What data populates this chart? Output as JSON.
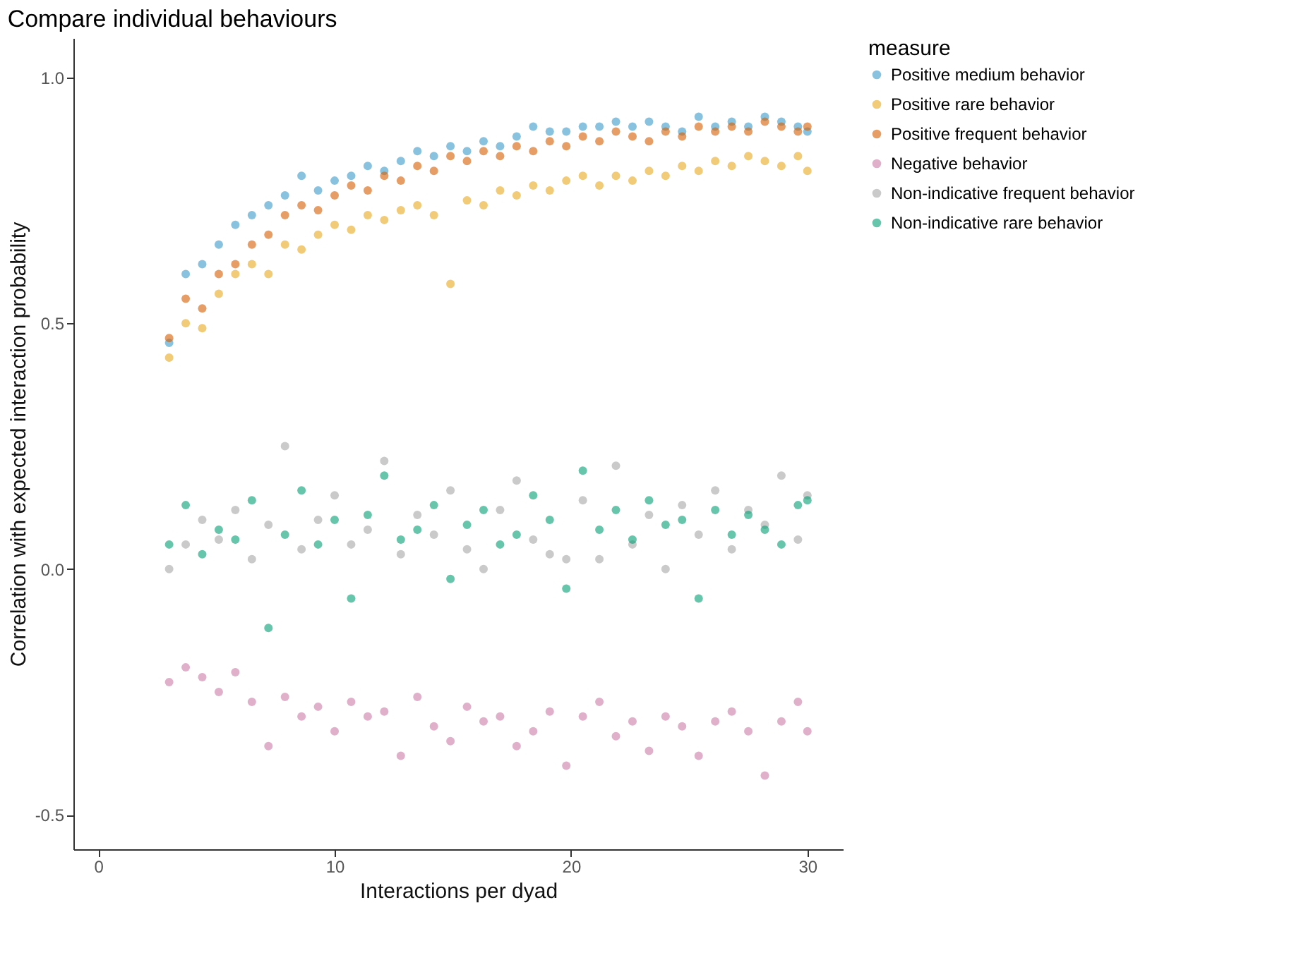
{
  "chart_data": {
    "type": "scatter",
    "title": "Compare individual behaviours",
    "xlabel": "Interactions per dyad",
    "ylabel": "Correlation with expected interaction probability",
    "legend_title": "measure",
    "legend": "right",
    "marker": "circle",
    "grid": false,
    "xlim": [
      -1.05,
      31.5
    ],
    "ylim": [
      -0.57,
      1.08
    ],
    "xticks": [
      0,
      10,
      20,
      30
    ],
    "yticks": [
      {
        "value": -0.5,
        "label": "-0.5"
      },
      {
        "value": 0,
        "label": "0.0"
      },
      {
        "value": 0.5,
        "label": "0.5"
      },
      {
        "value": 1,
        "label": "1.0"
      }
    ],
    "x": [
      3,
      3.7,
      4.4,
      5.1,
      5.8,
      6.5,
      7.2,
      7.9,
      8.6,
      9.3,
      10,
      10.7,
      11.4,
      12.1,
      12.8,
      13.5,
      14.2,
      14.9,
      15.6,
      16.3,
      17,
      17.7,
      18.4,
      19.1,
      19.8,
      20.5,
      21.2,
      21.9,
      22.6,
      23.3,
      24,
      24.7,
      25.4,
      26.1,
      26.8,
      27.5,
      28.2,
      28.9,
      29.6,
      30
    ],
    "series": [
      {
        "name": "Positive medium behavior",
        "color": "#3a9ac9",
        "values": [
          0.46,
          0.6,
          0.62,
          0.66,
          0.7,
          0.72,
          0.74,
          0.76,
          0.8,
          0.77,
          0.79,
          0.8,
          0.82,
          0.81,
          0.83,
          0.85,
          0.84,
          0.86,
          0.85,
          0.87,
          0.86,
          0.88,
          0.9,
          0.89,
          0.89,
          0.9,
          0.9,
          0.91,
          0.9,
          0.91,
          0.9,
          0.89,
          0.92,
          0.9,
          0.91,
          0.9,
          0.92,
          0.91,
          0.9,
          0.89
        ]
      },
      {
        "name": "Positive rare behavior",
        "color": "#e8a91c",
        "values": [
          0.43,
          0.5,
          0.49,
          0.56,
          0.6,
          0.62,
          0.6,
          0.66,
          0.65,
          0.68,
          0.7,
          0.69,
          0.72,
          0.71,
          0.73,
          0.74,
          0.72,
          0.58,
          0.75,
          0.74,
          0.77,
          0.76,
          0.78,
          0.77,
          0.79,
          0.8,
          0.78,
          0.8,
          0.79,
          0.81,
          0.8,
          0.82,
          0.81,
          0.83,
          0.82,
          0.84,
          0.83,
          0.82,
          0.84,
          0.81
        ]
      },
      {
        "name": "Positive frequent behavior",
        "color": "#d55e00",
        "values": [
          0.47,
          0.55,
          0.53,
          0.6,
          0.62,
          0.66,
          0.68,
          0.72,
          0.74,
          0.73,
          0.76,
          0.78,
          0.77,
          0.8,
          0.79,
          0.82,
          0.81,
          0.84,
          0.83,
          0.85,
          0.84,
          0.86,
          0.85,
          0.87,
          0.86,
          0.88,
          0.87,
          0.89,
          0.88,
          0.87,
          0.89,
          0.88,
          0.9,
          0.89,
          0.9,
          0.89,
          0.91,
          0.9,
          0.89,
          0.9
        ]
      },
      {
        "name": "Negative behavior",
        "color": "#cc79a7",
        "values": [
          -0.23,
          -0.2,
          -0.22,
          -0.25,
          -0.21,
          -0.27,
          -0.36,
          -0.26,
          -0.3,
          -0.28,
          -0.33,
          -0.27,
          -0.3,
          -0.29,
          -0.38,
          -0.26,
          -0.32,
          -0.35,
          -0.28,
          -0.31,
          -0.3,
          -0.36,
          -0.33,
          -0.29,
          -0.4,
          -0.3,
          -0.27,
          -0.34,
          -0.31,
          -0.37,
          -0.3,
          -0.32,
          -0.38,
          -0.31,
          -0.29,
          -0.33,
          -0.42,
          -0.31,
          -0.27,
          -0.33
        ]
      },
      {
        "name": "Non-indicative frequent behavior",
        "color": "#a6a6a6",
        "values": [
          0.0,
          0.05,
          0.1,
          0.06,
          0.12,
          0.02,
          0.09,
          0.25,
          0.04,
          0.1,
          0.15,
          0.05,
          0.08,
          0.22,
          0.03,
          0.11,
          0.07,
          0.16,
          0.04,
          0.0,
          0.12,
          0.18,
          0.06,
          0.03,
          0.02,
          0.14,
          0.02,
          0.21,
          0.05,
          0.11,
          0.0,
          0.13,
          0.07,
          0.16,
          0.04,
          0.12,
          0.09,
          0.19,
          0.06,
          0.15
        ]
      },
      {
        "name": "Non-indicative rare behavior",
        "color": "#009e73",
        "values": [
          0.05,
          0.13,
          0.03,
          0.08,
          0.06,
          0.14,
          -0.12,
          0.07,
          0.16,
          0.05,
          0.1,
          -0.06,
          0.11,
          0.19,
          0.06,
          0.08,
          0.13,
          -0.02,
          0.09,
          0.12,
          0.05,
          0.07,
          0.15,
          0.1,
          -0.04,
          0.2,
          0.08,
          0.12,
          0.06,
          0.14,
          0.09,
          0.1,
          -0.06,
          0.12,
          0.07,
          0.11,
          0.08,
          0.05,
          0.13,
          0.14
        ]
      }
    ]
  }
}
